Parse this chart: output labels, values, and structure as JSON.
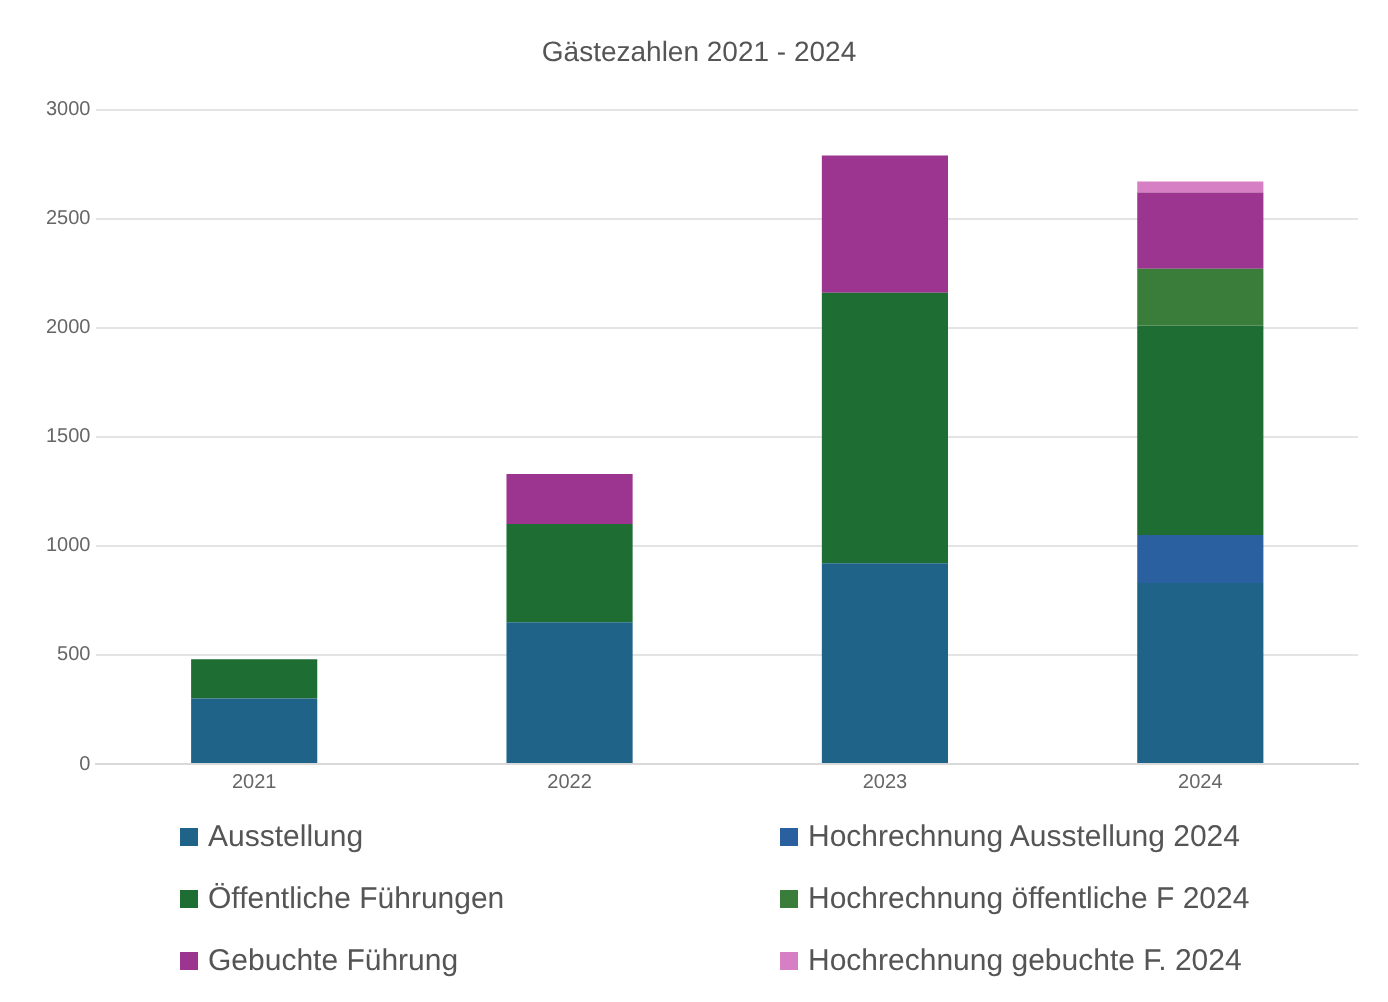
{
  "chart_data": {
    "type": "bar",
    "title": "Gästezahlen 2021 - 2024",
    "categories": [
      "2021",
      "2022",
      "2023",
      "2024"
    ],
    "stacked": true,
    "ylim": [
      0,
      3000
    ],
    "yticks": [
      0,
      500,
      1000,
      1500,
      2000,
      2500,
      3000
    ],
    "grid": "y",
    "legend": "bottom",
    "series": [
      {
        "name": "Ausstellung",
        "color": "#1f6389",
        "values": [
          300,
          650,
          920,
          830
        ]
      },
      {
        "name": "Hochrechnung Ausstellung 2024",
        "color": "#2a5fa0",
        "values": [
          null,
          null,
          null,
          220
        ]
      },
      {
        "name": "Öffentliche Führungen",
        "color": "#1e6e34",
        "values": [
          180,
          450,
          1240,
          960
        ]
      },
      {
        "name": "Hochrechnung öffentliche F 2024",
        "color": "#3a7d3a",
        "values": [
          null,
          null,
          null,
          260
        ]
      },
      {
        "name": "Gebuchte Führung",
        "color": "#9b3590",
        "values": [
          null,
          230,
          630,
          350
        ]
      },
      {
        "name": "Hochrechnung gebuchte F. 2024",
        "color": "#d67fc4",
        "values": [
          null,
          null,
          null,
          50
        ]
      }
    ]
  }
}
